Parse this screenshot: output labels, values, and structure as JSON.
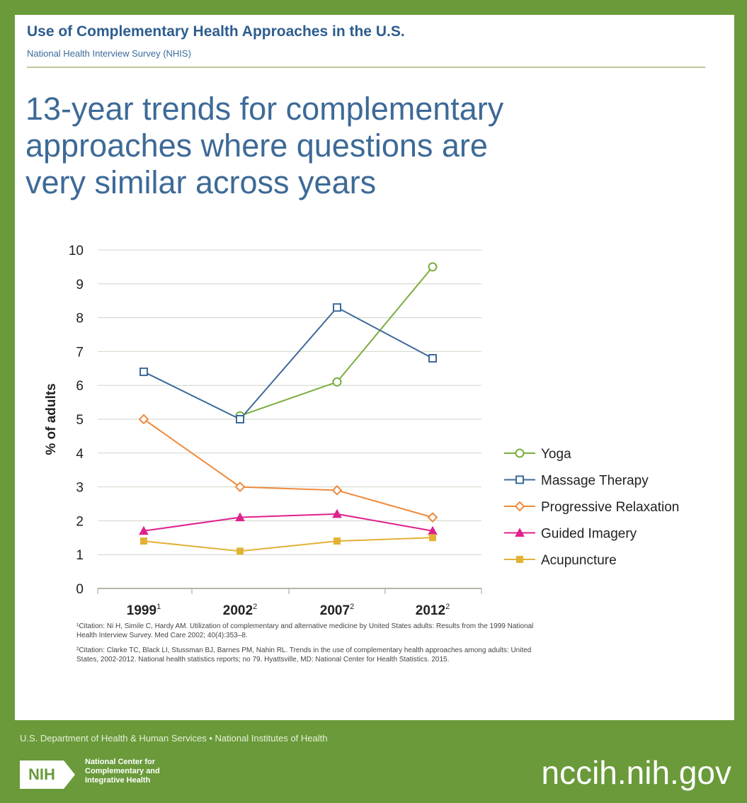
{
  "header": {
    "title": "Use of Complementary Health Approaches in the U.S.",
    "subtitle": "National Health Interview Survey (NHIS)"
  },
  "main_title_lines": [
    "13-year trends for complementary",
    "approaches where questions are",
    "very similar across years"
  ],
  "chart_data": {
    "type": "line",
    "categories": [
      "1999",
      "2002",
      "2007",
      "2012"
    ],
    "category_superscripts": [
      "1",
      "2",
      "2",
      "2"
    ],
    "ylabel": "% of adults",
    "ylim": [
      0,
      10
    ],
    "yticks": [
      0,
      1,
      2,
      3,
      4,
      5,
      6,
      7,
      8,
      9,
      10
    ],
    "grid": true,
    "legend_position": "right",
    "series": [
      {
        "name": "Yoga",
        "color": "#7aad3e",
        "marker": "circle-open",
        "values": [
          null,
          5.1,
          6.1,
          9.5
        ]
      },
      {
        "name": "Massage Therapy",
        "color": "#3d6a9a",
        "marker": "square-open",
        "values": [
          6.4,
          5.0,
          8.3,
          6.8
        ]
      },
      {
        "name": "Progressive Relaxation",
        "color": "#ef8a3c",
        "marker": "diamond-open",
        "values": [
          5.0,
          3.0,
          2.9,
          2.1
        ]
      },
      {
        "name": "Guided Imagery",
        "color": "#e0208c",
        "marker": "triangle-filled",
        "values": [
          1.7,
          2.1,
          2.2,
          1.7
        ]
      },
      {
        "name": "Acupuncture",
        "color": "#e2b235",
        "marker": "square-filled",
        "values": [
          1.4,
          1.1,
          1.4,
          1.5
        ]
      }
    ]
  },
  "footnotes": [
    "¹Citation: Ni H, Simile C, Hardy AM. Utilization of complementary and alternative medicine by United States adults: Results from the 1999 National Health Interview Survey. Med Care 2002; 40(4):353–8.",
    "²Citation: Clarke TC, Black LI, Stussman BJ, Barnes PM, Nahin RL. Trends in the use of complementary health approaches among adults: United States, 2002-2012. National health statistics reports; no 79. Hyattsville, MD: National Center for Health Statistics. 2015."
  ],
  "footer": {
    "org_line": "U.S. Department of Health & Human Services • National Institutes of Health",
    "nih_logo": "NIH",
    "center_name_lines": [
      "National Center for",
      "Complementary and",
      "Integrative Health"
    ],
    "url": "nccih.nih.gov"
  },
  "colors": {
    "frame_green": "#6a9a3a",
    "title_blue": "#2d5d8f",
    "gridline": "#cfd6c8"
  }
}
